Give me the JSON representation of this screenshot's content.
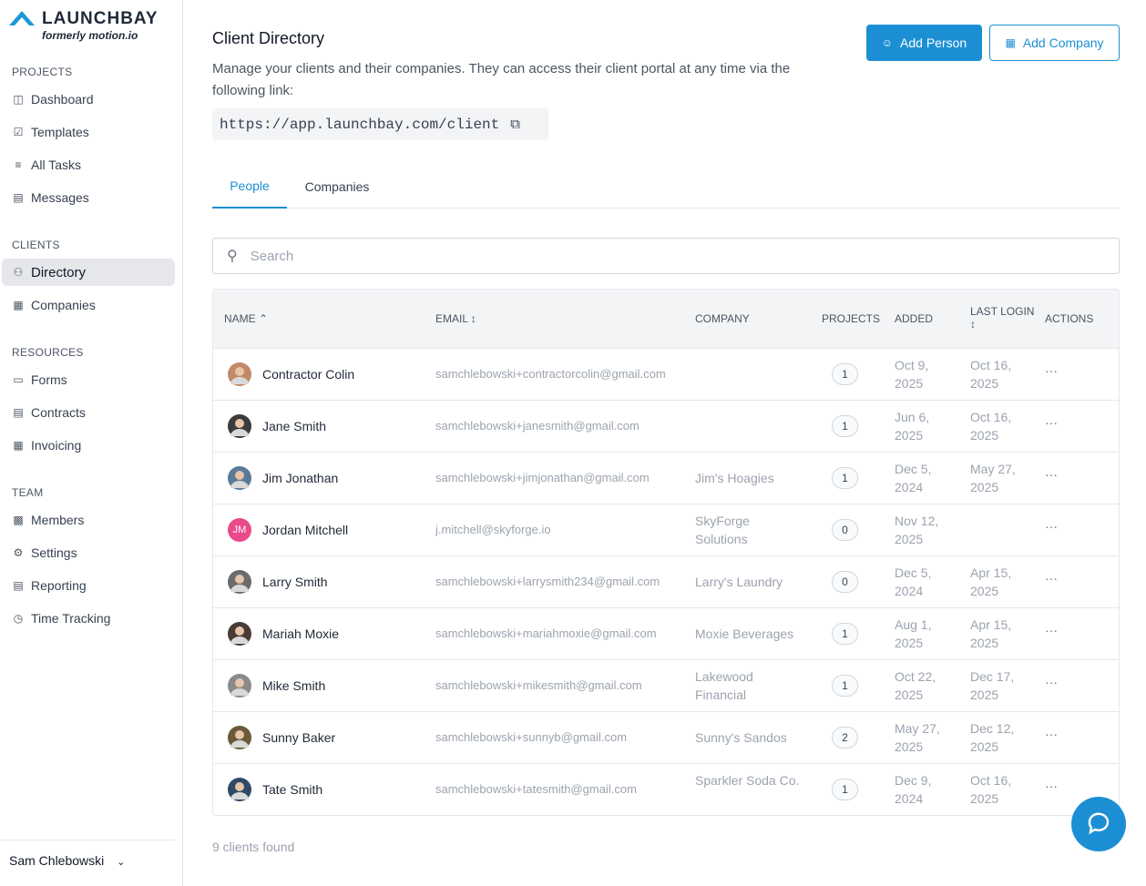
{
  "brand": {
    "name": "LAUNCHBAY",
    "subtitle": "formerly motion.io"
  },
  "sidebar": {
    "sections": [
      {
        "title": "PROJECTS",
        "items": [
          {
            "label": "Dashboard",
            "icon": "dashboard-icon"
          },
          {
            "label": "Templates",
            "icon": "clipboard-icon"
          },
          {
            "label": "All Tasks",
            "icon": "list-icon"
          },
          {
            "label": "Messages",
            "icon": "message-icon"
          }
        ]
      },
      {
        "title": "CLIENTS",
        "items": [
          {
            "label": "Directory",
            "icon": "users-icon",
            "active": true
          },
          {
            "label": "Companies",
            "icon": "building-icon"
          }
        ]
      },
      {
        "title": "RESOURCES",
        "items": [
          {
            "label": "Forms",
            "icon": "form-icon"
          },
          {
            "label": "Contracts",
            "icon": "document-icon"
          },
          {
            "label": "Invoicing",
            "icon": "invoice-icon"
          }
        ]
      },
      {
        "title": "TEAM",
        "items": [
          {
            "label": "Members",
            "icon": "member-icon"
          },
          {
            "label": "Settings",
            "icon": "gear-icon"
          },
          {
            "label": "Reporting",
            "icon": "report-icon"
          },
          {
            "label": "Time Tracking",
            "icon": "clock-icon"
          }
        ]
      }
    ],
    "user": "Sam Chlebowski"
  },
  "header": {
    "title": "Client Directory",
    "description": "Manage your clients and their companies. They can access their client portal at any time via the following link:",
    "portal_link": "https://app.launchbay.com/client",
    "add_person": "Add Person",
    "add_company": "Add Company"
  },
  "tabs": [
    "People",
    "Companies"
  ],
  "search": {
    "placeholder": "Search"
  },
  "table": {
    "columns": [
      "NAME",
      "EMAIL",
      "COMPANY",
      "PROJECTS",
      "ADDED",
      "LAST LOGIN",
      "ACTIONS"
    ],
    "rows": [
      {
        "name": "Contractor Colin",
        "email": "samchlebowski+contractorcolin@gmail.com",
        "company": "",
        "projects": "1",
        "added": "Oct 9, 2025",
        "last_login": "Oct 16, 2025",
        "avatar_color": "#c08a6a"
      },
      {
        "name": "Jane Smith",
        "email": "samchlebowski+janesmith@gmail.com",
        "company": "",
        "projects": "1",
        "added": "Jun 6, 2025",
        "last_login": "Oct 16, 2025",
        "avatar_color": "#3b3b3b"
      },
      {
        "name": "Jim Jonathan",
        "email": "samchlebowski+jimjonathan@gmail.com",
        "company": "Jim's Hoagies",
        "projects": "1",
        "added": "Dec 5, 2024",
        "last_login": "May 27, 2025",
        "avatar_color": "#5a7a9a"
      },
      {
        "name": "Jordan Mitchell",
        "initials": "JM",
        "email": "j.mitchell@skyforge.io",
        "company": "SkyForge Solutions",
        "projects": "0",
        "added": "Nov 12, 2025",
        "last_login": "",
        "avatar_color": "#e84a8a"
      },
      {
        "name": "Larry Smith",
        "email": "samchlebowski+larrysmith234@gmail.com",
        "company": "Larry's Laundry",
        "projects": "0",
        "added": "Dec 5, 2024",
        "last_login": "Apr 15, 2025",
        "avatar_color": "#6b6b6b"
      },
      {
        "name": "Mariah Moxie",
        "email": "samchlebowski+mariahmoxie@gmail.com",
        "company": "Moxie Beverages",
        "projects": "1",
        "added": "Aug 1, 2025",
        "last_login": "Apr 15, 2025",
        "avatar_color": "#4a3a35"
      },
      {
        "name": "Mike Smith",
        "email": "samchlebowski+mikesmith@gmail.com",
        "company": "Lakewood Financial",
        "projects": "1",
        "added": "Oct 22, 2025",
        "last_login": "Dec 17, 2025",
        "avatar_color": "#8a8a8a"
      },
      {
        "name": "Sunny Baker",
        "email": "samchlebowski+sunnyb@gmail.com",
        "company": "Sunny's Sandos",
        "projects": "2",
        "added": "May 27, 2025",
        "last_login": "Dec 12, 2025",
        "avatar_color": "#6a5a3a"
      },
      {
        "name": "Tate Smith",
        "email": "samchlebowski+tatesmith@gmail.com",
        "company": "Sparkler Soda Co.",
        "projects": "1",
        "added": "Dec 9, 2024",
        "last_login": "Oct 16, 2025",
        "avatar_color": "#2f4a66"
      }
    ]
  },
  "footer": "9 clients found",
  "accent": "#1c8fd4"
}
